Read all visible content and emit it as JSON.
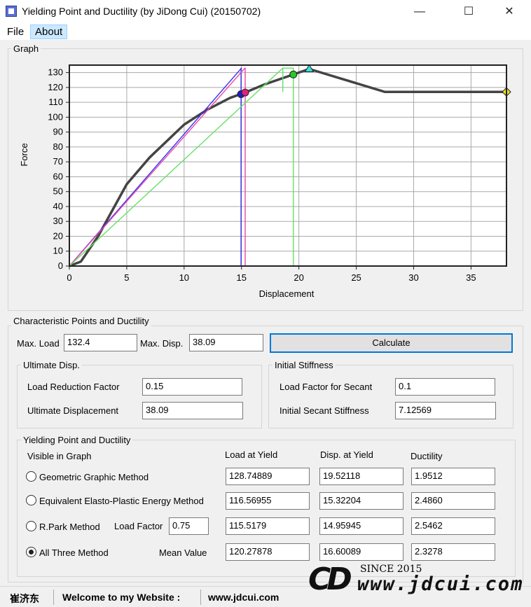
{
  "window": {
    "title": "Yielding Point and Ductility (by JiDong Cui) (20150702)"
  },
  "menu": {
    "file": "File",
    "about": "About"
  },
  "graph": {
    "label": "Graph"
  },
  "chart_data": {
    "type": "line",
    "xlabel": "Displacement",
    "ylabel": "Force",
    "xlim": [
      0,
      38.09
    ],
    "ylim": [
      0,
      135
    ],
    "xticks": [
      0,
      5,
      10,
      15,
      20,
      25,
      30,
      35
    ],
    "yticks": [
      0,
      10,
      20,
      30,
      40,
      50,
      60,
      70,
      80,
      90,
      100,
      110,
      120,
      130
    ],
    "grid": true,
    "series": [
      {
        "color": "#444444",
        "x": [
          0,
          1.0,
          2.5,
          5,
          7,
          10,
          12,
          14,
          15.32,
          17,
          19.52,
          20.9,
          27.5,
          38.09
        ],
        "y": [
          0,
          3,
          20,
          55,
          73,
          95,
          105,
          113,
          116.6,
          122,
          128.7,
          132.4,
          117,
          117
        ]
      },
      {
        "color": "#3333ee",
        "x": [
          0,
          15.0,
          14.96,
          14.96
        ],
        "y": [
          0,
          133,
          133,
          0
        ]
      },
      {
        "color": "#ee44aa",
        "x": [
          0,
          15.3,
          15.32,
          15.32
        ],
        "y": [
          0,
          133,
          133,
          0
        ]
      },
      {
        "color": "#66e066",
        "x": [
          0,
          18.6,
          19.52,
          19.52
        ],
        "y": [
          0,
          133,
          133,
          0
        ]
      },
      {
        "color": "#66e066",
        "x": [
          18.6,
          18.6
        ],
        "y": [
          133,
          117
        ]
      }
    ],
    "markers": [
      {
        "shape": "circle",
        "color": "#1c1cd6",
        "x": 14.96,
        "y": 115.5
      },
      {
        "shape": "circle",
        "color": "#e0207a",
        "x": 15.32,
        "y": 116.6
      },
      {
        "shape": "circle",
        "color": "#28c828",
        "x": 19.52,
        "y": 128.7
      },
      {
        "shape": "triangle",
        "color": "#38e0e0",
        "x": 20.9,
        "y": 132.4
      },
      {
        "shape": "diamond",
        "color": "#f0e020",
        "x": 38.09,
        "y": 117
      }
    ]
  },
  "characteristic": {
    "label": "Characteristic Points and Ductility",
    "max_load_label": "Max. Load",
    "max_load": "132.4",
    "max_disp_label": "Max. Disp.",
    "max_disp": "38.09",
    "calculate": "Calculate"
  },
  "ultimate": {
    "label": "Ultimate Disp.",
    "lrf_label": "Load Reduction Factor",
    "lrf": "0.15",
    "ud_label": "Ultimate Displacement",
    "ud": "38.09"
  },
  "initial": {
    "label": "Initial Stiffness",
    "lfs_label": "Load Factor for Secant",
    "lfs": "0.1",
    "iss_label": "Initial Secant Stiffness",
    "iss": "7.12569"
  },
  "yielding": {
    "label": "Yielding Point and Ductility",
    "visible_label": "Visible in Graph",
    "col_load": "Load at Yield",
    "col_disp": "Disp. at Yield",
    "col_duct": "Ductility",
    "load_factor_label": "Load Factor",
    "load_factor": "0.75",
    "mean_label": "Mean Value",
    "rows": [
      {
        "method": "Geometric Graphic Method",
        "load": "128.74889",
        "disp": "19.52118",
        "duct": "1.9512"
      },
      {
        "method": "Equivalent Elasto-Plastic Energy Method",
        "load": "116.56955",
        "disp": "15.32204",
        "duct": "2.4860"
      },
      {
        "method": "R.Park Method",
        "load": "115.5179",
        "disp": "14.95945",
        "duct": "2.5462"
      },
      {
        "method": "All Three Method",
        "load": "120.27878",
        "disp": "16.60089",
        "duct": "2.3278"
      }
    ]
  },
  "status": {
    "author": "崔济东",
    "welcome": "Welcome to my Website :",
    "site": "www.jdcui.com"
  },
  "logo": {
    "since": "SINCE 2015",
    "url": "www.jdcui.com"
  }
}
